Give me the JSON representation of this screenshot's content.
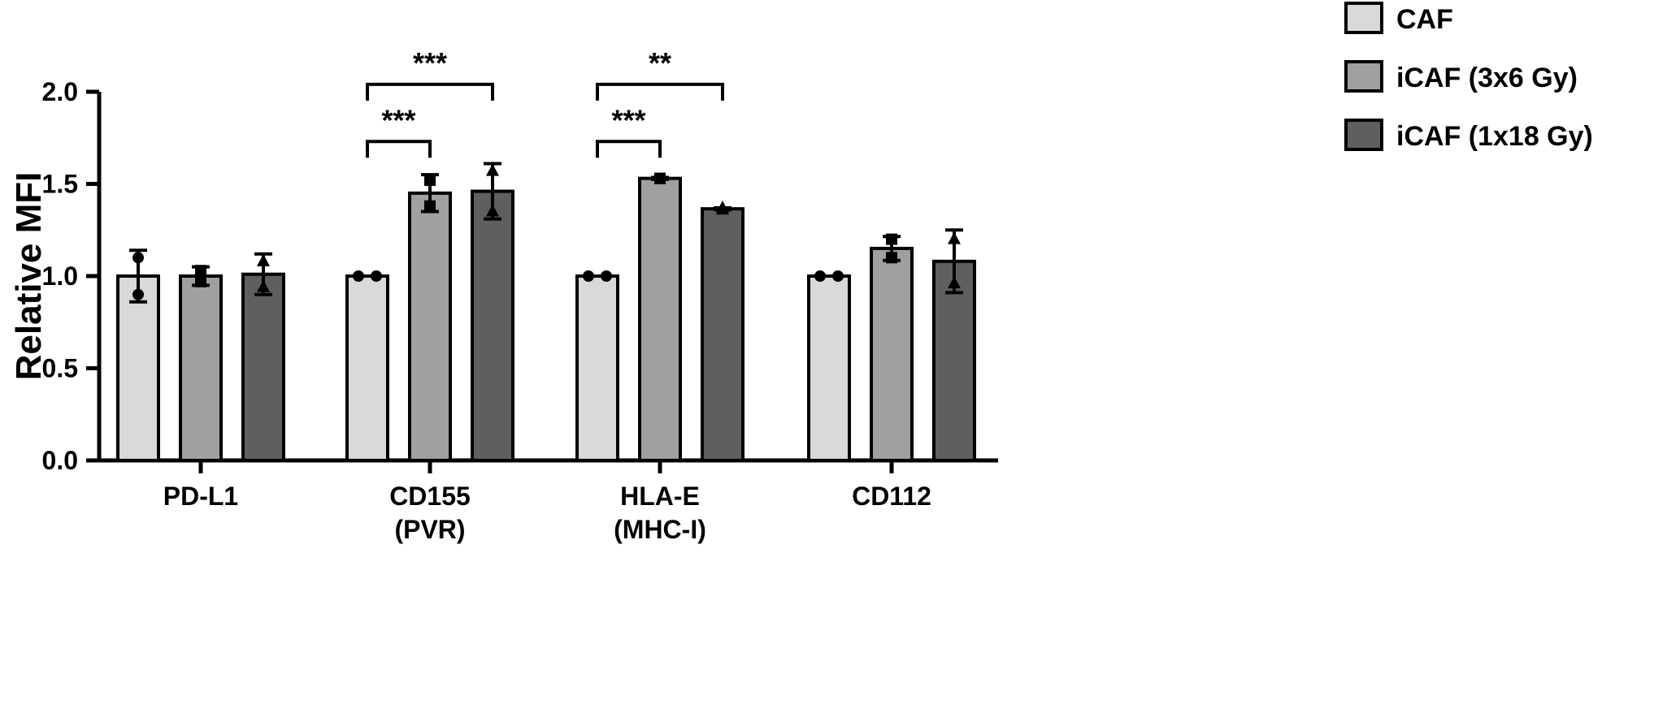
{
  "chart_data": {
    "type": "bar",
    "ylabel": "Relative MFI",
    "ylim": [
      0,
      2.0
    ],
    "yticks": [
      "0.0",
      "0.5",
      "1.0",
      "1.5",
      "2.0"
    ],
    "categories": [
      {
        "line1": "PD-L1",
        "line2": ""
      },
      {
        "line1": "CD155",
        "line2": "(PVR)"
      },
      {
        "line1": "HLA-E",
        "line2": "(MHC-I)"
      },
      {
        "line1": "CD112",
        "line2": ""
      }
    ],
    "series": [
      {
        "name": "CAF",
        "color": "#d9d9d9",
        "marker": "circle",
        "values": [
          1.0,
          1.0,
          1.0,
          1.0
        ],
        "error": [
          0.14,
          0.0,
          0.0,
          0.0
        ],
        "points": [
          [
            1.1,
            0.9
          ],
          [
            1.0,
            1.0
          ],
          [
            1.0,
            1.0
          ],
          [
            1.0,
            1.0
          ]
        ]
      },
      {
        "name": "iCAF (3x6 Gy)",
        "color": "#a0a0a3",
        "marker": "square",
        "values": [
          1.0,
          1.45,
          1.53,
          1.15
        ],
        "error": [
          0.05,
          0.1,
          0.005,
          0.065
        ],
        "points": [
          [
            1.03,
            0.97
          ],
          [
            1.52,
            1.38
          ],
          [
            1.53,
            1.53
          ],
          [
            1.2,
            1.1
          ]
        ]
      },
      {
        "name": "iCAF (1x18 Gy)",
        "color": "#5f5f5f",
        "marker": "triangle",
        "values": [
          1.01,
          1.46,
          1.365,
          1.08
        ],
        "error": [
          0.11,
          0.15,
          0.005,
          0.17
        ],
        "points": [
          [
            1.08,
            0.94
          ],
          [
            1.57,
            1.35
          ],
          [
            1.37,
            1.36
          ],
          [
            1.2,
            0.96
          ]
        ]
      }
    ],
    "significance": [
      {
        "category": 1,
        "from_series": 0,
        "to_series": 1,
        "label": "***",
        "level": 1.73
      },
      {
        "category": 1,
        "from_series": 0,
        "to_series": 2,
        "label": "***",
        "level": 2.04
      },
      {
        "category": 2,
        "from_series": 0,
        "to_series": 1,
        "label": "***",
        "level": 1.73
      },
      {
        "category": 2,
        "from_series": 0,
        "to_series": 2,
        "label": "**",
        "level": 2.04
      }
    ],
    "legend_position": "top-right",
    "grid": false
  }
}
